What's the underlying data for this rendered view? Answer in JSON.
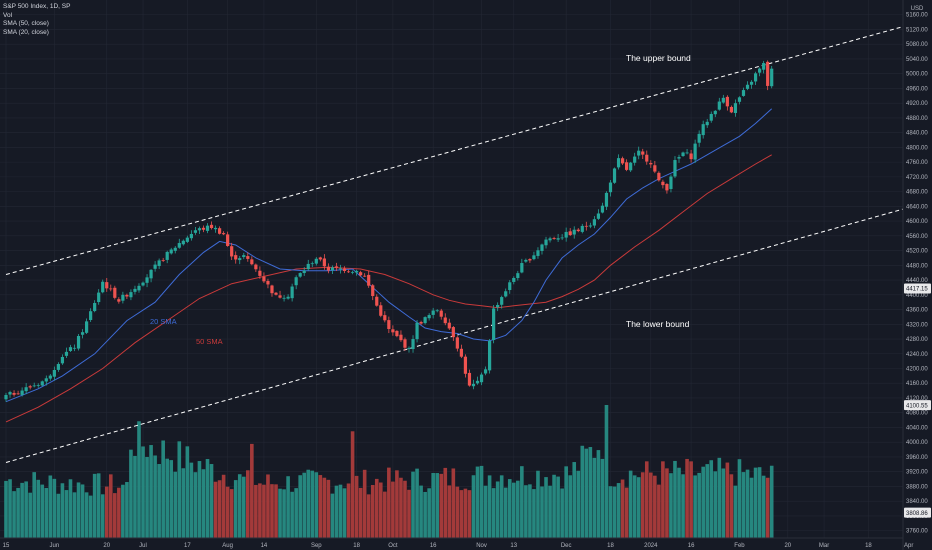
{
  "legend": {
    "title": "S&P 500 Index, 1D, SP",
    "vol": "Vol",
    "sma50": "SMA (50, close)",
    "sma20": "SMA (20, close)"
  },
  "currency": "USD",
  "colors": {
    "background": "#161a25",
    "up": "#26a69a",
    "down": "#ef5350",
    "vol_up": "#26877f",
    "vol_down": "#a33a3a",
    "sma20": "#3e6bd6",
    "sma50": "#c93a3a",
    "channel": "#ffffff"
  },
  "chart_data": {
    "type": "candlestick",
    "title": "S&P 500 Index, 1D, SP",
    "ylim": [
      3740,
      5200
    ],
    "y_ticks": [
      3760,
      3800,
      3840,
      3880,
      3920,
      3960,
      4000,
      4040,
      4080,
      4120,
      4160,
      4200,
      4240,
      4280,
      4320,
      4360,
      4400,
      4440,
      4480,
      4520,
      4560,
      4600,
      4640,
      4680,
      4720,
      4760,
      4800,
      4840,
      4880,
      4920,
      4960,
      5000,
      5040,
      5080,
      5120,
      5160
    ],
    "x_ticks": [
      {
        "label": "15",
        "day": 0
      },
      {
        "label": "Jun",
        "day": 12
      },
      {
        "label": "20",
        "day": 25
      },
      {
        "label": "Jul",
        "day": 34
      },
      {
        "label": "17",
        "day": 45
      },
      {
        "label": "Aug",
        "day": 55
      },
      {
        "label": "14",
        "day": 64
      },
      {
        "label": "Sep",
        "day": 77
      },
      {
        "label": "18",
        "day": 87
      },
      {
        "label": "Oct",
        "day": 96
      },
      {
        "label": "16",
        "day": 106
      },
      {
        "label": "Nov",
        "day": 118
      },
      {
        "label": "13",
        "day": 126
      },
      {
        "label": "Dec",
        "day": 139
      },
      {
        "label": "18",
        "day": 150
      },
      {
        "label": "2024",
        "day": 160
      },
      {
        "label": "16",
        "day": 170
      },
      {
        "label": "Feb",
        "day": 182
      },
      {
        "label": "20",
        "day": 194
      },
      {
        "label": "Mar",
        "day": 203
      },
      {
        "label": "18",
        "day": 214
      },
      {
        "label": "Apr",
        "day": 224
      }
    ],
    "price_tags": [
      {
        "value": 4417.15,
        "label": "4417.15"
      },
      {
        "value": 4100.55,
        "label": "4100.55"
      },
      {
        "value": 3808.86,
        "label": "3808.86"
      }
    ],
    "anchors": [
      [
        0,
        4125
      ],
      [
        6,
        4150
      ],
      [
        10,
        4170
      ],
      [
        14,
        4235
      ],
      [
        17,
        4260
      ],
      [
        20,
        4325
      ],
      [
        24,
        4435
      ],
      [
        28,
        4385
      ],
      [
        31,
        4410
      ],
      [
        35,
        4450
      ],
      [
        39,
        4500
      ],
      [
        43,
        4540
      ],
      [
        47,
        4575
      ],
      [
        51,
        4585
      ],
      [
        54,
        4565
      ],
      [
        56,
        4500
      ],
      [
        59,
        4505
      ],
      [
        62,
        4470
      ],
      [
        64,
        4440
      ],
      [
        67,
        4395
      ],
      [
        70,
        4400
      ],
      [
        72,
        4445
      ],
      [
        75,
        4480
      ],
      [
        77,
        4500
      ],
      [
        80,
        4470
      ],
      [
        84,
        4470
      ],
      [
        87,
        4465
      ],
      [
        89,
        4450
      ],
      [
        92,
        4370
      ],
      [
        95,
        4305
      ],
      [
        98,
        4275
      ],
      [
        100,
        4250
      ],
      [
        102,
        4320
      ],
      [
        104,
        4335
      ],
      [
        107,
        4360
      ],
      [
        109,
        4330
      ],
      [
        111,
        4290
      ],
      [
        113,
        4230
      ],
      [
        115,
        4150
      ],
      [
        117,
        4160
      ],
      [
        119,
        4200
      ],
      [
        121,
        4360
      ],
      [
        125,
        4430
      ],
      [
        128,
        4480
      ],
      [
        131,
        4510
      ],
      [
        134,
        4550
      ],
      [
        138,
        4560
      ],
      [
        142,
        4575
      ],
      [
        145,
        4595
      ],
      [
        148,
        4640
      ],
      [
        150,
        4710
      ],
      [
        152,
        4765
      ],
      [
        154,
        4740
      ],
      [
        157,
        4785
      ],
      [
        160,
        4760
      ],
      [
        162,
        4705
      ],
      [
        164,
        4690
      ],
      [
        166,
        4760
      ],
      [
        168,
        4785
      ],
      [
        170,
        4775
      ],
      [
        172,
        4840
      ],
      [
        175,
        4890
      ],
      [
        178,
        4935
      ],
      [
        180,
        4900
      ],
      [
        182,
        4935
      ],
      [
        184,
        4965
      ],
      [
        186,
        4998
      ],
      [
        188,
        5025
      ],
      [
        189,
        4970
      ],
      [
        190,
        5010
      ]
    ],
    "sma20_points": [
      [
        0,
        4110
      ],
      [
        8,
        4145
      ],
      [
        14,
        4180
      ],
      [
        22,
        4240
      ],
      [
        30,
        4330
      ],
      [
        37,
        4380
      ],
      [
        43,
        4455
      ],
      [
        49,
        4515
      ],
      [
        53,
        4545
      ],
      [
        57,
        4535
      ],
      [
        62,
        4500
      ],
      [
        68,
        4470
      ],
      [
        74,
        4465
      ],
      [
        80,
        4465
      ],
      [
        86,
        4470
      ],
      [
        90,
        4430
      ],
      [
        95,
        4380
      ],
      [
        100,
        4340
      ],
      [
        104,
        4310
      ],
      [
        108,
        4300
      ],
      [
        112,
        4295
      ],
      [
        116,
        4280
      ],
      [
        120,
        4275
      ],
      [
        124,
        4290
      ],
      [
        128,
        4330
      ],
      [
        131,
        4380
      ],
      [
        134,
        4440
      ],
      [
        138,
        4500
      ],
      [
        142,
        4535
      ],
      [
        146,
        4565
      ],
      [
        150,
        4610
      ],
      [
        154,
        4660
      ],
      [
        158,
        4690
      ],
      [
        162,
        4715
      ],
      [
        166,
        4735
      ],
      [
        170,
        4755
      ],
      [
        174,
        4780
      ],
      [
        178,
        4805
      ],
      [
        182,
        4830
      ],
      [
        186,
        4865
      ],
      [
        190,
        4905
      ]
    ],
    "sma50_points": [
      [
        0,
        4055
      ],
      [
        8,
        4095
      ],
      [
        16,
        4145
      ],
      [
        24,
        4200
      ],
      [
        32,
        4270
      ],
      [
        40,
        4330
      ],
      [
        48,
        4390
      ],
      [
        56,
        4430
      ],
      [
        64,
        4450
      ],
      [
        72,
        4470
      ],
      [
        80,
        4475
      ],
      [
        88,
        4470
      ],
      [
        94,
        4455
      ],
      [
        100,
        4430
      ],
      [
        106,
        4400
      ],
      [
        110,
        4385
      ],
      [
        114,
        4375
      ],
      [
        118,
        4370
      ],
      [
        122,
        4365
      ],
      [
        126,
        4370
      ],
      [
        130,
        4375
      ],
      [
        134,
        4380
      ],
      [
        138,
        4395
      ],
      [
        142,
        4415
      ],
      [
        146,
        4440
      ],
      [
        150,
        4480
      ],
      [
        156,
        4530
      ],
      [
        162,
        4575
      ],
      [
        168,
        4625
      ],
      [
        174,
        4675
      ],
      [
        180,
        4715
      ],
      [
        186,
        4755
      ],
      [
        190,
        4780
      ]
    ],
    "volume_profile": [
      [
        0,
        0.42
      ],
      [
        30,
        0.38
      ],
      [
        31,
        0.72
      ],
      [
        60,
        0.41
      ],
      [
        61,
        0.75
      ],
      [
        62,
        0.4
      ],
      [
        85,
        0.42
      ],
      [
        86,
        0.72
      ],
      [
        87,
        0.41
      ],
      [
        110,
        0.44
      ],
      [
        120,
        0.46
      ],
      [
        140,
        0.47
      ],
      [
        148,
        0.72
      ],
      [
        149,
        0.9
      ],
      [
        150,
        0.47
      ],
      [
        180,
        0.48
      ],
      [
        190,
        0.45
      ]
    ],
    "channel": {
      "upper": [
        [
          0,
          4455
        ],
        [
          225,
          5135
        ]
      ],
      "lower": [
        [
          0,
          3945
        ],
        [
          225,
          4640
        ]
      ]
    },
    "annotations": [
      {
        "text": "The upper bound"
      },
      {
        "text": "The lower bound"
      },
      {
        "text": "20 SMA"
      },
      {
        "text": "50 SMA"
      }
    ]
  }
}
